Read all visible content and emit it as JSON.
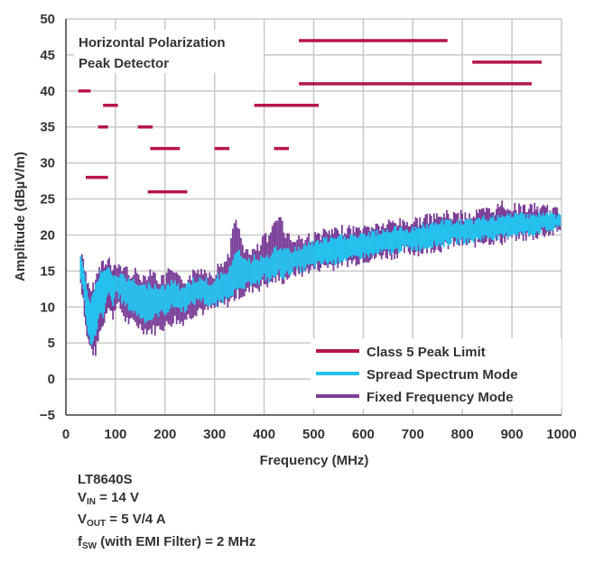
{
  "chart_data": {
    "type": "line",
    "xlabel": "Frequency (MHz)",
    "ylabel": "Amplitude (dBµV/m)",
    "xlim": [
      0,
      1000
    ],
    "ylim": [
      -5,
      50
    ],
    "xticks": [
      "0",
      "100",
      "200",
      "300",
      "400",
      "500",
      "600",
      "700",
      "800",
      "900",
      "1000"
    ],
    "yticks": [
      "−5",
      "0",
      "5",
      "10",
      "15",
      "20",
      "25",
      "30",
      "35",
      "40",
      "45",
      "50"
    ],
    "grid": true,
    "legend_position": "bottom-right",
    "annotation_lines": [
      "Horizontal Polarization",
      "Peak Detector"
    ],
    "colors": {
      "limit": "#b5154d",
      "spread": "#25c1ee",
      "fixed": "#7b3f98"
    },
    "limit_segments": [
      {
        "x": [
          25,
          50
        ],
        "y": 40
      },
      {
        "x": [
          75,
          105
        ],
        "y": 38
      },
      {
        "x": [
          65,
          85
        ],
        "y": 35
      },
      {
        "x": [
          145,
          175
        ],
        "y": 35
      },
      {
        "x": [
          40,
          85
        ],
        "y": 28
      },
      {
        "x": [
          170,
          230
        ],
        "y": 32
      },
      {
        "x": [
          300,
          330
        ],
        "y": 32
      },
      {
        "x": [
          420,
          450
        ],
        "y": 32
      },
      {
        "x": [
          165,
          245
        ],
        "y": 26
      },
      {
        "x": [
          380,
          510
        ],
        "y": 38
      },
      {
        "x": [
          470,
          770
        ],
        "y": 47
      },
      {
        "x": [
          470,
          940
        ],
        "y": 41
      },
      {
        "x": [
          820,
          960
        ],
        "y": 44
      }
    ],
    "series": [
      {
        "name": "Class 5 Peak Limit",
        "type": "segments"
      },
      {
        "name": "Spread Spectrum Mode",
        "x": [
          30,
          35,
          40,
          45,
          50,
          55,
          60,
          65,
          70,
          75,
          80,
          85,
          90,
          95,
          100,
          110,
          120,
          130,
          140,
          150,
          160,
          170,
          180,
          190,
          200,
          210,
          220,
          230,
          240,
          250,
          260,
          270,
          280,
          290,
          300,
          310,
          320,
          330,
          340,
          350,
          360,
          370,
          380,
          390,
          400,
          410,
          420,
          430,
          440,
          450,
          460,
          470,
          480,
          490,
          500,
          520,
          540,
          560,
          580,
          600,
          620,
          640,
          660,
          680,
          700,
          720,
          740,
          760,
          780,
          800,
          820,
          840,
          860,
          880,
          900,
          920,
          940,
          960,
          980,
          1000
        ],
        "low": [
          14,
          12,
          9,
          6,
          5,
          5,
          6,
          8,
          9,
          8,
          10,
          12,
          11,
          10,
          12,
          11,
          10,
          9.5,
          9,
          8.5,
          8,
          8,
          8.5,
          9,
          9,
          9.5,
          10,
          9.5,
          9.5,
          10,
          10.5,
          11,
          10.5,
          10,
          10,
          10.5,
          11,
          11.5,
          12,
          12,
          12.5,
          13,
          13.5,
          13,
          14,
          13.5,
          14,
          14.5,
          14,
          14.5,
          15,
          15,
          15,
          15.5,
          15.5,
          16,
          16,
          16.5,
          16.5,
          17,
          17,
          17.5,
          17.5,
          18,
          18,
          18,
          18.5,
          18.5,
          19,
          19,
          19,
          19.5,
          19.5,
          19.5,
          20,
          20,
          20,
          20.5,
          20.5,
          21
        ],
        "high": [
          17,
          16,
          14,
          12,
          11,
          12,
          13,
          14,
          15,
          15,
          15,
          16,
          15,
          14,
          15,
          14.5,
          14,
          14,
          13.5,
          13,
          13,
          13.5,
          13,
          13,
          13,
          13.5,
          13.5,
          13,
          13,
          13.5,
          14,
          14,
          14,
          13.5,
          14,
          14.5,
          15,
          15.5,
          17,
          18,
          17,
          16.5,
          17,
          17,
          17.5,
          17,
          18,
          18.5,
          18,
          18,
          18,
          18.5,
          18.5,
          19,
          19,
          19.5,
          19.5,
          20,
          20,
          20,
          20.5,
          20.5,
          21,
          21,
          21,
          21.5,
          21.5,
          22,
          22,
          22,
          22,
          22.5,
          22.5,
          22.5,
          23,
          23,
          23,
          23,
          23,
          23
        ]
      },
      {
        "name": "Fixed Frequency Mode",
        "x": [
          30,
          35,
          40,
          45,
          50,
          55,
          60,
          65,
          70,
          75,
          80,
          85,
          90,
          95,
          100,
          110,
          120,
          130,
          140,
          150,
          160,
          170,
          180,
          190,
          200,
          210,
          220,
          230,
          240,
          250,
          260,
          270,
          280,
          290,
          300,
          310,
          320,
          330,
          340,
          350,
          360,
          370,
          380,
          390,
          400,
          410,
          420,
          430,
          440,
          450,
          460,
          470,
          480,
          490,
          500,
          520,
          540,
          560,
          580,
          600,
          620,
          640,
          660,
          680,
          700,
          720,
          740,
          760,
          780,
          800,
          820,
          840,
          860,
          880,
          900,
          920,
          940,
          960,
          980,
          1000
        ],
        "low": [
          13,
          11,
          7,
          5,
          4,
          3.5,
          3.5,
          5,
          7,
          7,
          9,
          10,
          9,
          8.5,
          10,
          9.5,
          8,
          7.5,
          7.5,
          7,
          6.5,
          6.5,
          6.5,
          7,
          7,
          7.5,
          8,
          7.5,
          8,
          8.5,
          9,
          9.5,
          9,
          9.5,
          9.5,
          10,
          10,
          10.5,
          11,
          11.5,
          11.5,
          12,
          12.5,
          12.5,
          13,
          13,
          13.5,
          13.5,
          13.5,
          14,
          14.5,
          14.5,
          14.5,
          15,
          15,
          15.5,
          15.5,
          16,
          16,
          16.5,
          16.5,
          17,
          17,
          17.5,
          17.5,
          17.5,
          18,
          18,
          18.5,
          18.5,
          18.5,
          19,
          19,
          19,
          19.5,
          19.5,
          19.5,
          20,
          20,
          20.5
        ],
        "high": [
          17.5,
          17,
          15,
          13,
          12,
          13,
          14,
          15,
          16,
          16.5,
          16,
          17.5,
          16,
          15,
          16,
          16,
          15.5,
          15,
          15,
          14.5,
          14.5,
          15.5,
          14.5,
          14,
          14,
          15.5,
          14.5,
          14,
          14,
          14.5,
          15,
          15.5,
          15.5,
          15,
          15,
          16,
          16.5,
          18,
          22,
          21,
          18.5,
          17.5,
          18,
          18.5,
          20,
          19.5,
          22,
          23.5,
          21,
          20,
          19.5,
          20,
          19.5,
          20,
          20,
          20.5,
          20.5,
          21,
          21,
          21,
          21.5,
          21.5,
          22,
          22,
          22,
          22.5,
          22.5,
          23,
          23,
          23,
          23,
          23.5,
          23.5,
          24.5,
          24,
          24,
          24,
          24,
          23.5,
          23.5
        ]
      }
    ],
    "legend": [
      "Class 5 Peak Limit",
      "Spread Spectrum Mode",
      "Fixed Frequency Mode"
    ]
  },
  "notes": {
    "line1": "LT8640S",
    "line2_main": "V",
    "line2_sub": "IN",
    "line2_rest": " = 14 V",
    "line3_main": "V",
    "line3_sub": "OUT",
    "line3_rest": " = 5 V/4 A",
    "line4_main": "f",
    "line4_sub": "SW",
    "line4_rest": " (with EMI Filter) = 2 MHz"
  }
}
